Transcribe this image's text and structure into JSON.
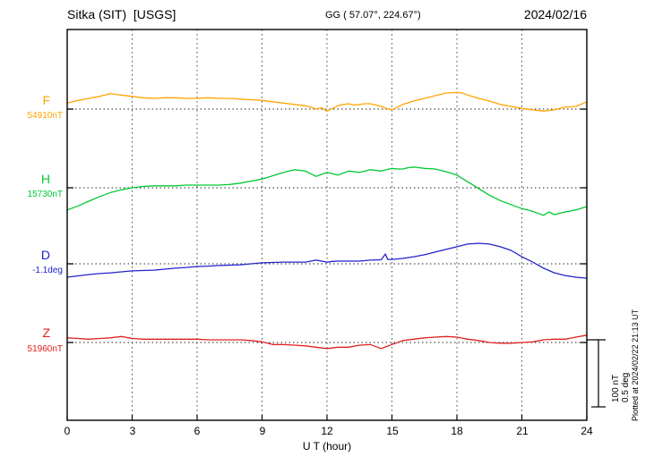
{
  "header": {
    "title": "Sitka (SIT)  [USGS]",
    "gg": "GG ( 57.07°, 224.67°)",
    "date": "2024/02/16"
  },
  "chart_data": {
    "type": "line",
    "title": "Sitka (SIT) [USGS] magnetogram 2024/02/16",
    "xlabel": "U T (hour)",
    "x_range": [
      0,
      24
    ],
    "x_ticks": [
      0,
      3,
      6,
      9,
      12,
      15,
      18,
      21,
      24
    ],
    "grid": "vertical dotted lines every 3 hours; dotted horizontal baseline per trace",
    "values_format": "offsets are [hour_UT, offset_from_baseline] in the series unit",
    "scale": {
      "nT_per_division": 100,
      "deg_per_division": 0.5
    },
    "series": [
      {
        "name": "F",
        "unit": "nT",
        "color": "#FFA500",
        "baseline_value": 54910,
        "baseline_label": "54910nT",
        "offsets": [
          [
            0,
            9
          ],
          [
            0.5,
            13
          ],
          [
            1,
            16
          ],
          [
            1.5,
            19
          ],
          [
            2,
            23
          ],
          [
            2.5,
            21
          ],
          [
            3,
            19
          ],
          [
            3.5,
            17
          ],
          [
            4,
            16
          ],
          [
            4.5,
            17
          ],
          [
            5,
            17
          ],
          [
            5.5,
            16
          ],
          [
            6,
            16
          ],
          [
            6.5,
            17
          ],
          [
            7,
            16
          ],
          [
            7.5,
            16
          ],
          [
            8,
            15
          ],
          [
            8.5,
            14
          ],
          [
            9,
            13
          ],
          [
            9.5,
            11
          ],
          [
            10,
            9
          ],
          [
            10.5,
            7
          ],
          [
            11,
            5
          ],
          [
            11.25,
            3
          ],
          [
            11.5,
            0
          ],
          [
            11.75,
            2
          ],
          [
            12,
            -3
          ],
          [
            12.25,
            1
          ],
          [
            12.5,
            5
          ],
          [
            12.75,
            7
          ],
          [
            13,
            8
          ],
          [
            13.25,
            6
          ],
          [
            13.5,
            7
          ],
          [
            13.75,
            8
          ],
          [
            14,
            8
          ],
          [
            14.25,
            6
          ],
          [
            14.5,
            4
          ],
          [
            14.75,
            1
          ],
          [
            15,
            -1
          ],
          [
            15.25,
            3
          ],
          [
            15.5,
            7
          ],
          [
            16,
            12
          ],
          [
            16.5,
            16
          ],
          [
            17,
            20
          ],
          [
            17.5,
            24
          ],
          [
            18,
            25
          ],
          [
            18.25,
            24
          ],
          [
            18.5,
            21
          ],
          [
            19,
            16
          ],
          [
            19.5,
            12
          ],
          [
            20,
            7
          ],
          [
            20.5,
            4
          ],
          [
            21,
            1
          ],
          [
            21.5,
            -1
          ],
          [
            22,
            -3
          ],
          [
            22.25,
            -2
          ],
          [
            22.5,
            -1
          ],
          [
            23,
            3
          ],
          [
            23.5,
            4
          ],
          [
            24,
            11
          ]
        ]
      },
      {
        "name": "H",
        "unit": "nT",
        "color": "#00C832",
        "baseline_value": 15730,
        "baseline_label": "15730nT",
        "offsets": [
          [
            0,
            -33
          ],
          [
            0.5,
            -27
          ],
          [
            1,
            -20
          ],
          [
            1.5,
            -13
          ],
          [
            2,
            -7
          ],
          [
            2.5,
            -3
          ],
          [
            3,
            0
          ],
          [
            3.5,
            2
          ],
          [
            4,
            3
          ],
          [
            4.5,
            3
          ],
          [
            5,
            3
          ],
          [
            5.5,
            4
          ],
          [
            6,
            4
          ],
          [
            6.5,
            4
          ],
          [
            7,
            4
          ],
          [
            7.5,
            5
          ],
          [
            8,
            7
          ],
          [
            8.5,
            10
          ],
          [
            9,
            13
          ],
          [
            9.5,
            18
          ],
          [
            10,
            23
          ],
          [
            10.25,
            25
          ],
          [
            10.5,
            27
          ],
          [
            10.75,
            26
          ],
          [
            11,
            25
          ],
          [
            11.25,
            21
          ],
          [
            11.5,
            17
          ],
          [
            11.75,
            20
          ],
          [
            12,
            23
          ],
          [
            12.25,
            21
          ],
          [
            12.5,
            19
          ],
          [
            12.75,
            22
          ],
          [
            13,
            25
          ],
          [
            13.25,
            24
          ],
          [
            13.5,
            23
          ],
          [
            13.75,
            25
          ],
          [
            14,
            27
          ],
          [
            14.25,
            26
          ],
          [
            14.5,
            25
          ],
          [
            14.75,
            27
          ],
          [
            15,
            29
          ],
          [
            15.25,
            28
          ],
          [
            15.5,
            28
          ],
          [
            15.75,
            30
          ],
          [
            16,
            31
          ],
          [
            16.25,
            30
          ],
          [
            16.5,
            29
          ],
          [
            17,
            28
          ],
          [
            17.5,
            24
          ],
          [
            18,
            19
          ],
          [
            18.5,
            9
          ],
          [
            19,
            -1
          ],
          [
            19.5,
            -11
          ],
          [
            20,
            -19
          ],
          [
            20.5,
            -25
          ],
          [
            21,
            -31
          ],
          [
            21.5,
            -35
          ],
          [
            22,
            -41
          ],
          [
            22.25,
            -36
          ],
          [
            22.5,
            -40
          ],
          [
            23,
            -36
          ],
          [
            23.5,
            -33
          ],
          [
            24,
            -28
          ]
        ]
      },
      {
        "name": "D",
        "unit": "deg",
        "color": "#2222CC",
        "baseline_value": -1.1,
        "baseline_label": "-1.1deg",
        "offsets": [
          [
            0,
            -0.1
          ],
          [
            0.5,
            -0.09
          ],
          [
            1,
            -0.08
          ],
          [
            1.5,
            -0.073
          ],
          [
            2,
            -0.067
          ],
          [
            2.5,
            -0.06
          ],
          [
            3,
            -0.053
          ],
          [
            3.5,
            -0.05
          ],
          [
            4,
            -0.047
          ],
          [
            4.5,
            -0.04
          ],
          [
            5,
            -0.033
          ],
          [
            5.5,
            -0.027
          ],
          [
            6,
            -0.02
          ],
          [
            6.5,
            -0.017
          ],
          [
            7,
            -0.013
          ],
          [
            7.5,
            -0.01
          ],
          [
            8,
            -0.007
          ],
          [
            8.5,
            0
          ],
          [
            9,
            0.007
          ],
          [
            9.5,
            0.01
          ],
          [
            10,
            0.013
          ],
          [
            10.5,
            0.013
          ],
          [
            11,
            0.013
          ],
          [
            11.25,
            0.02
          ],
          [
            11.5,
            0.027
          ],
          [
            11.75,
            0.02
          ],
          [
            12,
            0.013
          ],
          [
            12.25,
            0.018
          ],
          [
            12.5,
            0.02
          ],
          [
            13,
            0.02
          ],
          [
            13.5,
            0.02
          ],
          [
            14,
            0.027
          ],
          [
            14.5,
            0.03
          ],
          [
            14.7,
            0.073
          ],
          [
            14.8,
            0.033
          ],
          [
            15,
            0.033
          ],
          [
            15.5,
            0.04
          ],
          [
            16,
            0.053
          ],
          [
            16.5,
            0.067
          ],
          [
            17,
            0.087
          ],
          [
            17.5,
            0.107
          ],
          [
            18,
            0.127
          ],
          [
            18.5,
            0.147
          ],
          [
            19,
            0.153
          ],
          [
            19.5,
            0.147
          ],
          [
            20,
            0.127
          ],
          [
            20.5,
            0.1
          ],
          [
            21,
            0.053
          ],
          [
            21.5,
            0.013
          ],
          [
            22,
            -0.033
          ],
          [
            22.5,
            -0.067
          ],
          [
            23,
            -0.087
          ],
          [
            23.5,
            -0.1
          ],
          [
            24,
            -0.107
          ]
        ]
      },
      {
        "name": "Z",
        "unit": "nT",
        "color": "#E02020",
        "baseline_value": 51960,
        "baseline_label": "51960nT",
        "offsets": [
          [
            0,
            7
          ],
          [
            0.5,
            6
          ],
          [
            1,
            5
          ],
          [
            1.5,
            6
          ],
          [
            2,
            7
          ],
          [
            2.5,
            9
          ],
          [
            3,
            6
          ],
          [
            3.5,
            5
          ],
          [
            4,
            5
          ],
          [
            4.5,
            5
          ],
          [
            5,
            5
          ],
          [
            5.5,
            5
          ],
          [
            6,
            5
          ],
          [
            6.5,
            4
          ],
          [
            7,
            4
          ],
          [
            7.5,
            4
          ],
          [
            8,
            4
          ],
          [
            8.5,
            3
          ],
          [
            9,
            1
          ],
          [
            9.5,
            -3
          ],
          [
            10,
            -3
          ],
          [
            10.5,
            -4
          ],
          [
            11,
            -5
          ],
          [
            11.5,
            -7
          ],
          [
            12,
            -9
          ],
          [
            12.5,
            -7
          ],
          [
            13,
            -7
          ],
          [
            13.5,
            -4
          ],
          [
            14,
            -3
          ],
          [
            14.5,
            -9
          ],
          [
            14.75,
            -6
          ],
          [
            15,
            -3
          ],
          [
            15.5,
            3
          ],
          [
            16,
            5
          ],
          [
            16.5,
            7
          ],
          [
            17,
            8
          ],
          [
            17.5,
            9
          ],
          [
            18,
            8
          ],
          [
            18.5,
            5
          ],
          [
            19,
            3
          ],
          [
            19.5,
            0
          ],
          [
            20,
            -1
          ],
          [
            20.5,
            -1
          ],
          [
            21,
            0
          ],
          [
            21.5,
            1
          ],
          [
            22,
            4
          ],
          [
            22.5,
            5
          ],
          [
            23,
            5
          ],
          [
            23.5,
            8
          ],
          [
            24,
            11
          ]
        ]
      }
    ],
    "scale_bar": {
      "nt_label": "100 nT",
      "deg_label": "0.5 deg"
    },
    "footnote": "Plotted at 2024/02/22 21:13 UT"
  }
}
